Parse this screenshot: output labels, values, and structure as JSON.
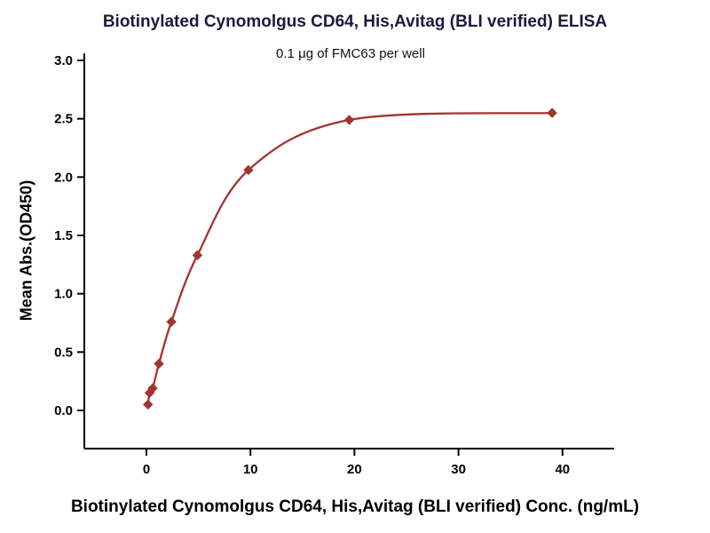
{
  "colors": {
    "curve": "#a23430",
    "marker": "#a23430",
    "axis": "#000000",
    "tick_text": "#000000",
    "title_text": "#1a1a3e"
  },
  "chart_data": {
    "type": "scatter",
    "title": "Biotinylated Cynomolgus CD64, His,Avitag (BLI verified) ELISA",
    "subtitle": "0.1 μg of FMC63 per well",
    "xlabel": "Biotinylated Cynomolgus CD64, His,Avitag (BLI verified) Conc. (ng/mL)",
    "ylabel": "Mean Abs.(OD450)",
    "xlim": [
      -6,
      45
    ],
    "ylim": [
      0,
      3.0
    ],
    "x_ticks": [
      0,
      10,
      20,
      30,
      40
    ],
    "y_ticks": [
      0.0,
      0.5,
      1.0,
      1.5,
      2.0,
      2.5,
      3.0
    ],
    "grid": false,
    "legend": false,
    "curve_fit": "4PL sigmoidal dose-response",
    "points": [
      {
        "x": 0.15,
        "y": 0.05
      },
      {
        "x": 0.3,
        "y": 0.15
      },
      {
        "x": 0.6,
        "y": 0.19
      },
      {
        "x": 1.2,
        "y": 0.4
      },
      {
        "x": 2.4,
        "y": 0.76
      },
      {
        "x": 4.9,
        "y": 1.33
      },
      {
        "x": 9.8,
        "y": 2.06
      },
      {
        "x": 19.5,
        "y": 2.49
      },
      {
        "x": 39,
        "y": 2.55
      }
    ]
  }
}
